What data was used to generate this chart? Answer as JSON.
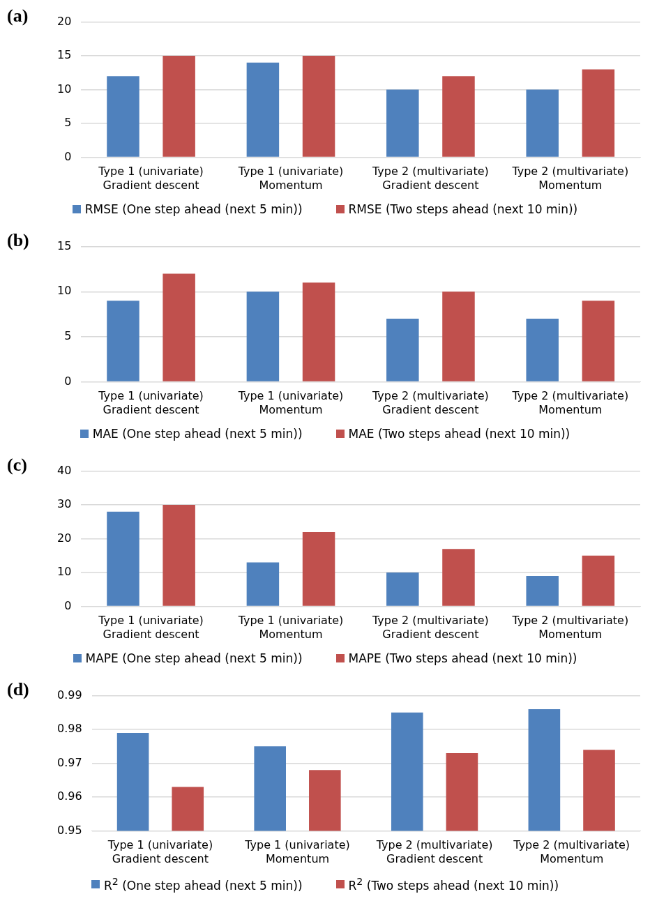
{
  "chart_data": [
    {
      "type": "bar",
      "title": "(a)",
      "categories": [
        "Type 1 (univariate)\nGradient descent",
        "Type 1 (univariate)\nMomentum",
        "Type 2 (multivariate)\nGradient descent",
        "Type 2 (multivariate)\nMomentum"
      ],
      "series": [
        {
          "name": "RMSE (One step ahead (next 5 min))",
          "color": "#4f81bd",
          "values": [
            12,
            14,
            10,
            10
          ]
        },
        {
          "name": "RMSE (Two steps ahead (next 10 min))",
          "color": "#c0504d",
          "values": [
            15,
            15,
            12,
            13
          ]
        }
      ],
      "ylim": [
        0,
        20
      ],
      "yticks": [
        0,
        5,
        10,
        15,
        20
      ],
      "grid": "y",
      "legend": "bottom"
    },
    {
      "type": "bar",
      "title": "(b)",
      "categories": [
        "Type 1 (univariate)\nGradient descent",
        "Type 1 (univariate)\nMomentum",
        "Type 2 (multivariate)\nGradient descent",
        "Type 2 (multivariate)\nMomentum"
      ],
      "series": [
        {
          "name": "MAE (One step ahead (next 5 min))",
          "color": "#4f81bd",
          "values": [
            9,
            10,
            7,
            7
          ]
        },
        {
          "name": "MAE (Two steps ahead (next 10 min))",
          "color": "#c0504d",
          "values": [
            12,
            11,
            10,
            9
          ]
        }
      ],
      "ylim": [
        0,
        15
      ],
      "yticks": [
        0,
        5,
        10,
        15
      ],
      "grid": "y",
      "legend": "bottom"
    },
    {
      "type": "bar",
      "title": "(c)",
      "categories": [
        "Type 1 (univariate)\nGradient descent",
        "Type 1 (univariate)\nMomentum",
        "Type 2 (multivariate)\nGradient descent",
        "Type 2 (multivariate)\nMomentum"
      ],
      "series": [
        {
          "name": "MAPE (One step ahead (next 5 min))",
          "color": "#4f81bd",
          "values": [
            28,
            13,
            10,
            9
          ]
        },
        {
          "name": "MAPE (Two steps ahead (next 10 min))",
          "color": "#c0504d",
          "values": [
            30,
            22,
            17,
            15
          ]
        }
      ],
      "ylim": [
        0,
        40
      ],
      "yticks": [
        0,
        10,
        20,
        30,
        40
      ],
      "grid": "y",
      "legend": "bottom"
    },
    {
      "type": "bar",
      "title": "(d)",
      "categories": [
        "Type 1 (univariate)\nGradient descent",
        "Type 1 (univariate)\nMomentum",
        "Type 2 (multivariate)\nGradient descent",
        "Type 2 (multivariate)\nMomentum"
      ],
      "series": [
        {
          "name": "R$^{2}$ (One step ahead (next 5 min))",
          "color": "#4f81bd",
          "values": [
            0.979,
            0.975,
            0.985,
            0.986
          ]
        },
        {
          "name": "R$^{2}$ (Two steps ahead (next 10 min))",
          "color": "#c0504d",
          "values": [
            0.963,
            0.968,
            0.973,
            0.974
          ]
        }
      ],
      "ylim": [
        0.95,
        0.99
      ],
      "yticks": [
        0.95,
        0.96,
        0.97,
        0.98,
        0.99
      ],
      "grid": "y",
      "legend": "bottom"
    }
  ]
}
